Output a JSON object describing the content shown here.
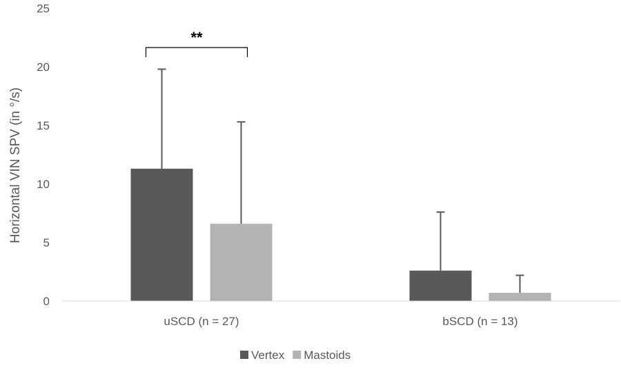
{
  "chart_data": {
    "type": "bar",
    "title": "",
    "xlabel": "",
    "ylabel": "Horizontal VIN SPV (in °/s)",
    "ylim": [
      0,
      25
    ],
    "yticks": [
      0,
      5,
      10,
      15,
      20,
      25
    ],
    "categories": [
      "uSCD (n = 27)",
      "bSCD (n = 13)"
    ],
    "series": [
      {
        "name": "Vertex",
        "values": [
          11.3,
          2.6
        ],
        "error_upper": [
          8.5,
          5.0
        ],
        "color": "#595959"
      },
      {
        "name": "Mastoids",
        "values": [
          6.6,
          0.7
        ],
        "error_upper": [
          8.7,
          1.5
        ],
        "color": "#b3b3b3"
      }
    ],
    "error_bar_color": "#595959",
    "grid": false,
    "legend": "bottom",
    "annotations": [
      {
        "text": "**",
        "category": "uSCD (n = 27)",
        "type": "significance-bracket"
      }
    ]
  }
}
